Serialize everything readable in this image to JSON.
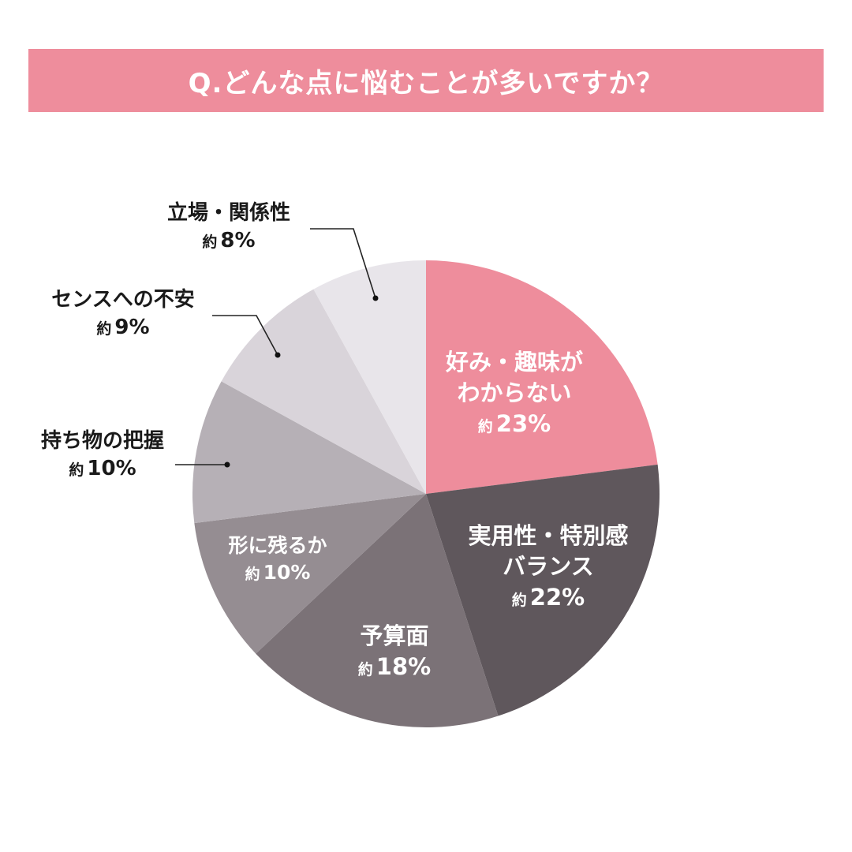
{
  "header": {
    "title": "Q.どんな点に悩むことが多いですか？"
  },
  "chart_data": {
    "type": "pie",
    "title": "Q.どんな点に悩むことが多いですか？",
    "start_angle": "12 o'clock, clockwise",
    "approx_prefix": "約",
    "categories": [
      "好み・趣味がわからない",
      "実用性・特別感バランス",
      "予算面",
      "形に残るか",
      "持ち物の把握",
      "センスへの不安",
      "立場・関係性"
    ],
    "values": [
      23,
      22,
      18,
      10,
      10,
      9,
      8
    ],
    "unit": "%",
    "colors": [
      "#ee8d9c",
      "#5f575c",
      "#7b7277",
      "#958d92",
      "#b6b0b6",
      "#d9d4da",
      "#e8e5ea"
    ],
    "legend": "none (labels placed on/next to slices)"
  },
  "labels": [
    {
      "line1": "好み・趣味が",
      "line2": "わからない",
      "approx": "約",
      "pct": "23%"
    },
    {
      "line1": "実用性・特別感",
      "line2": "バランス",
      "approx": "約",
      "pct": "22%"
    },
    {
      "line1": "予算面",
      "approx": "約",
      "pct": "18%"
    },
    {
      "line1": "形に残るか",
      "approx": "約",
      "pct": "10%"
    },
    {
      "line1": "持ち物の把握",
      "approx": "約",
      "pct": "10%"
    },
    {
      "line1": "センスへの不安",
      "approx": "約",
      "pct": "9%"
    },
    {
      "line1": "立場・関係性",
      "approx": "約",
      "pct": "8%"
    }
  ]
}
